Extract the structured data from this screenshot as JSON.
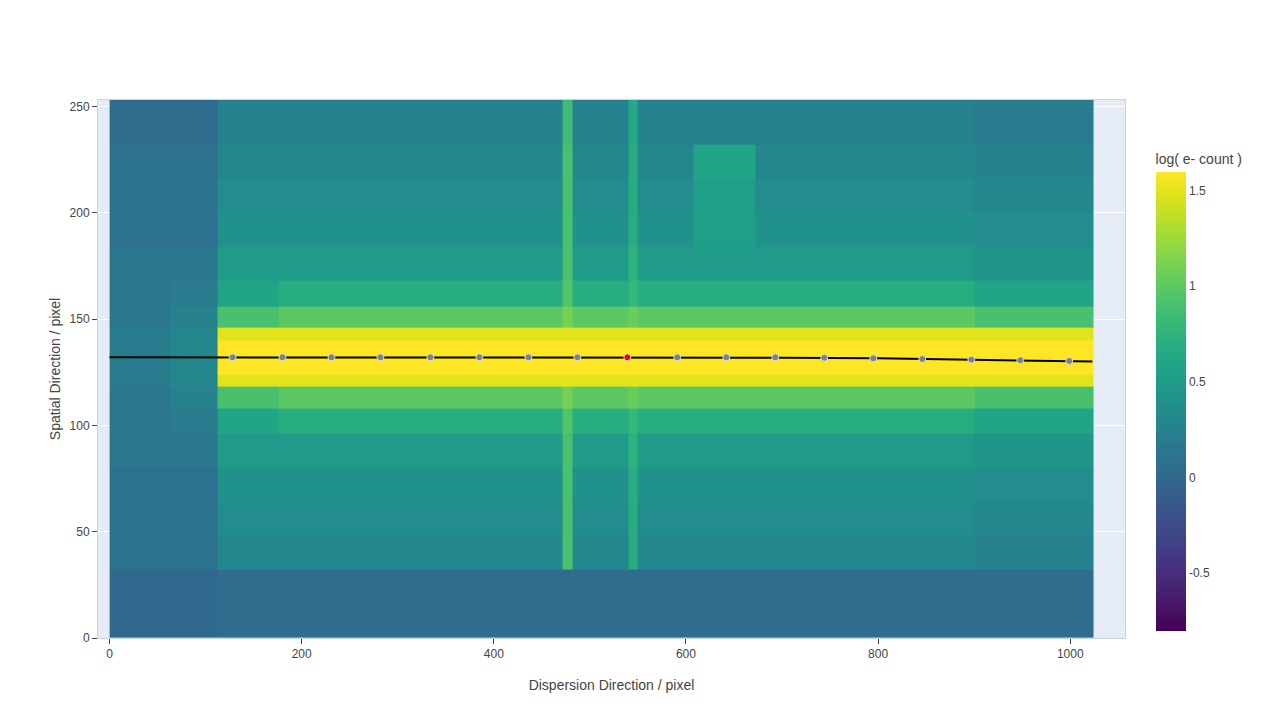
{
  "chart_data": {
    "type": "heatmap",
    "xlabel": "Dispersion Direction / pixel",
    "ylabel": "Spatial Direction / pixel",
    "xlim": [
      -12,
      1057
    ],
    "ylim": [
      0,
      253
    ],
    "xticks": [
      0,
      200,
      400,
      600,
      800,
      1000
    ],
    "yticks": [
      0,
      50,
      100,
      150,
      200,
      250
    ],
    "grid": true,
    "x_edges": [
      0,
      64,
      112,
      176,
      240,
      304,
      368,
      432,
      472,
      482,
      540,
      550,
      608,
      672,
      736,
      800,
      864,
      900,
      960,
      1024
    ],
    "y_edges": [
      0,
      16,
      32,
      48,
      64,
      80,
      96,
      108,
      118,
      124,
      128,
      136,
      140,
      146,
      156,
      168,
      184,
      200,
      216,
      232,
      256
    ],
    "cells": [
      [
        0.0,
        0.0,
        0.05,
        0.05,
        0.05,
        0.05,
        0.05,
        0.05,
        0.05,
        0.05,
        0.05,
        0.05,
        0.05,
        0.05,
        0.05,
        0.05,
        0.05,
        0.05,
        0.05
      ],
      [
        0.0,
        0.0,
        0.05,
        0.05,
        0.05,
        0.05,
        0.05,
        0.05,
        0.05,
        0.05,
        0.05,
        0.05,
        0.05,
        0.05,
        0.05,
        0.05,
        0.05,
        0.05,
        0.05
      ],
      [
        0.1,
        0.1,
        0.3,
        0.3,
        0.3,
        0.3,
        0.3,
        0.3,
        0.9,
        0.3,
        0.7,
        0.3,
        0.3,
        0.3,
        0.3,
        0.3,
        0.3,
        0.25,
        0.25
      ],
      [
        0.1,
        0.1,
        0.35,
        0.35,
        0.35,
        0.35,
        0.35,
        0.35,
        0.9,
        0.35,
        0.7,
        0.35,
        0.35,
        0.35,
        0.35,
        0.35,
        0.35,
        0.3,
        0.3
      ],
      [
        0.1,
        0.1,
        0.4,
        0.4,
        0.4,
        0.4,
        0.4,
        0.4,
        0.9,
        0.4,
        0.7,
        0.4,
        0.4,
        0.4,
        0.4,
        0.4,
        0.4,
        0.35,
        0.35
      ],
      [
        0.15,
        0.15,
        0.5,
        0.5,
        0.5,
        0.5,
        0.5,
        0.5,
        0.9,
        0.5,
        0.75,
        0.5,
        0.5,
        0.5,
        0.5,
        0.5,
        0.5,
        0.45,
        0.45
      ],
      [
        0.15,
        0.2,
        0.6,
        0.7,
        0.7,
        0.7,
        0.7,
        0.7,
        0.95,
        0.7,
        0.8,
        0.7,
        0.7,
        0.7,
        0.7,
        0.7,
        0.7,
        0.6,
        0.6
      ],
      [
        0.15,
        0.25,
        0.9,
        1.0,
        1.0,
        1.0,
        1.0,
        1.0,
        1.1,
        1.0,
        1.05,
        1.0,
        1.0,
        1.0,
        1.0,
        1.0,
        1.0,
        0.9,
        0.9
      ],
      [
        0.2,
        0.3,
        1.5,
        1.5,
        1.5,
        1.5,
        1.5,
        1.5,
        1.5,
        1.5,
        1.5,
        1.5,
        1.5,
        1.5,
        1.5,
        1.5,
        1.5,
        1.5,
        1.5
      ],
      [
        0.2,
        0.3,
        1.6,
        1.6,
        1.6,
        1.6,
        1.6,
        1.6,
        1.6,
        1.6,
        1.6,
        1.6,
        1.6,
        1.6,
        1.6,
        1.6,
        1.6,
        1.6,
        1.6
      ],
      [
        0.2,
        0.3,
        1.6,
        1.6,
        1.6,
        1.6,
        1.6,
        1.6,
        1.6,
        1.6,
        1.6,
        1.6,
        1.6,
        1.6,
        1.6,
        1.6,
        1.6,
        1.6,
        1.6
      ],
      [
        0.2,
        0.3,
        1.6,
        1.6,
        1.6,
        1.6,
        1.6,
        1.6,
        1.6,
        1.6,
        1.6,
        1.6,
        1.6,
        1.6,
        1.6,
        1.6,
        1.6,
        1.6,
        1.6
      ],
      [
        0.2,
        0.3,
        1.5,
        1.5,
        1.5,
        1.5,
        1.5,
        1.5,
        1.5,
        1.5,
        1.5,
        1.5,
        1.5,
        1.5,
        1.5,
        1.5,
        1.5,
        1.5,
        1.5
      ],
      [
        0.15,
        0.25,
        0.9,
        1.0,
        1.0,
        1.0,
        1.0,
        1.0,
        1.1,
        1.0,
        1.05,
        1.0,
        1.0,
        1.0,
        1.0,
        1.0,
        1.0,
        0.9,
        0.9
      ],
      [
        0.15,
        0.2,
        0.6,
        0.7,
        0.7,
        0.7,
        0.7,
        0.7,
        0.95,
        0.7,
        0.8,
        0.7,
        0.7,
        0.7,
        0.7,
        0.7,
        0.7,
        0.6,
        0.6
      ],
      [
        0.15,
        0.15,
        0.5,
        0.5,
        0.5,
        0.5,
        0.5,
        0.5,
        0.9,
        0.5,
        0.75,
        0.5,
        0.5,
        0.5,
        0.5,
        0.5,
        0.5,
        0.45,
        0.45
      ],
      [
        0.1,
        0.1,
        0.4,
        0.4,
        0.4,
        0.4,
        0.4,
        0.4,
        0.9,
        0.4,
        0.7,
        0.4,
        0.55,
        0.4,
        0.4,
        0.4,
        0.4,
        0.35,
        0.35
      ],
      [
        0.1,
        0.1,
        0.35,
        0.35,
        0.35,
        0.35,
        0.35,
        0.35,
        0.9,
        0.35,
        0.7,
        0.35,
        0.55,
        0.35,
        0.35,
        0.35,
        0.35,
        0.3,
        0.3
      ],
      [
        0.1,
        0.1,
        0.3,
        0.3,
        0.3,
        0.3,
        0.3,
        0.3,
        0.9,
        0.3,
        0.7,
        0.3,
        0.6,
        0.3,
        0.3,
        0.3,
        0.3,
        0.25,
        0.25
      ],
      [
        0.05,
        0.05,
        0.25,
        0.25,
        0.25,
        0.25,
        0.25,
        0.25,
        0.85,
        0.25,
        0.65,
        0.25,
        0.25,
        0.25,
        0.25,
        0.25,
        0.25,
        0.2,
        0.2
      ]
    ],
    "colorbar": {
      "title": "log( e- count )",
      "range": [
        -0.8,
        1.6
      ],
      "ticks": [
        -0.5,
        0,
        0.5,
        1,
        1.5
      ]
    },
    "trace": {
      "x": [
        0,
        100,
        200,
        300,
        400,
        500,
        600,
        700,
        800,
        850,
        900,
        950,
        1000,
        1023
      ],
      "y": [
        132,
        132,
        132,
        132,
        132,
        132,
        132,
        131.8,
        131.5,
        131.2,
        130.9,
        130.6,
        130.3,
        130
      ],
      "color": "black"
    },
    "markers": {
      "x": [
        128,
        180,
        231,
        282,
        334,
        385,
        436,
        487,
        591,
        642,
        693,
        744,
        795,
        846,
        897,
        948,
        999
      ],
      "y": [
        132,
        132,
        132,
        132,
        132,
        132,
        132,
        132,
        132,
        132,
        132,
        131.8,
        131.5,
        131.2,
        130.9,
        130.6,
        130.3
      ],
      "color": "gray"
    },
    "highlight": {
      "x": [
        539
      ],
      "y": [
        132
      ],
      "color": "red"
    }
  }
}
